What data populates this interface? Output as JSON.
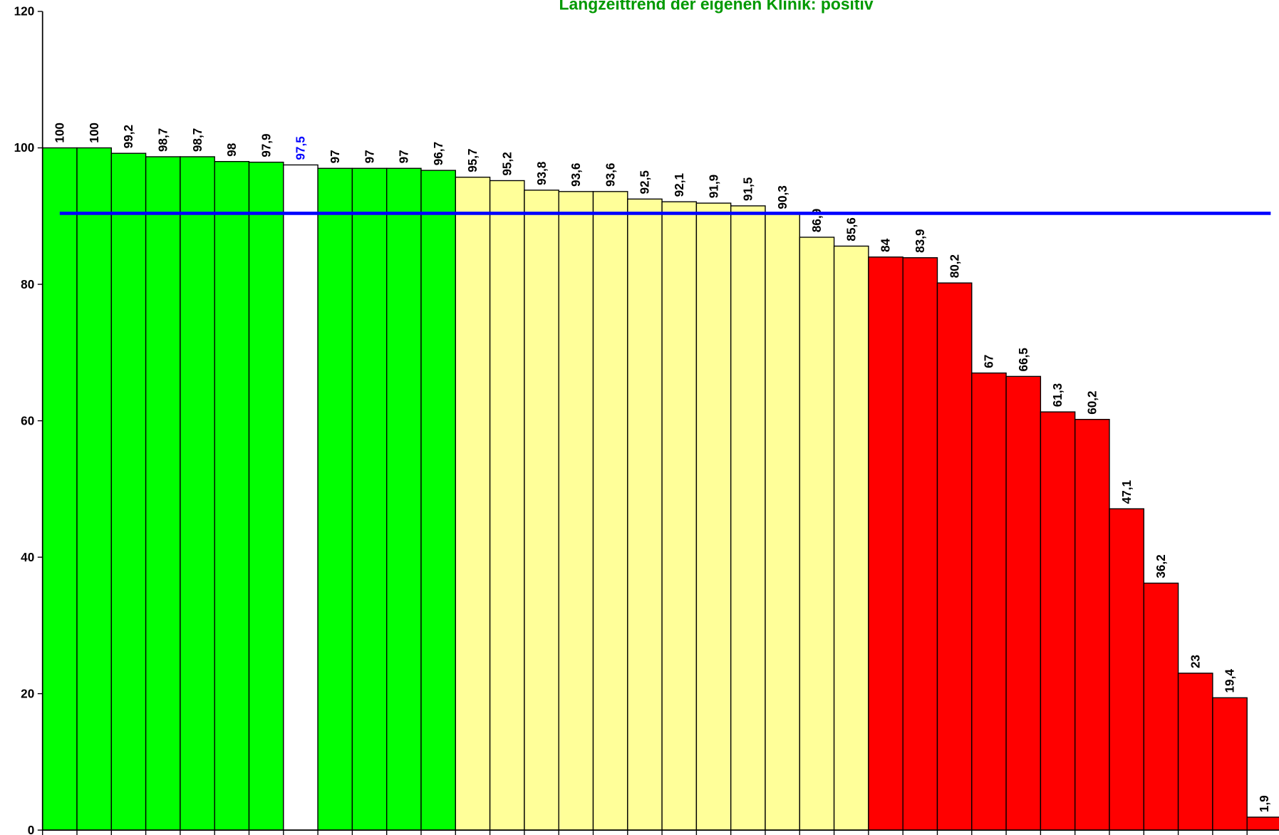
{
  "chart_data": {
    "type": "bar",
    "title": "Langzeittrend der eigenen Klinik: positiv",
    "values": [
      100,
      100,
      99.2,
      98.7,
      98.7,
      98,
      97.9,
      97.5,
      97,
      97,
      97,
      96.7,
      95.7,
      95.2,
      93.8,
      93.6,
      93.6,
      92.5,
      92.1,
      91.9,
      91.5,
      90.3,
      86.9,
      85.6,
      84,
      83.9,
      80.2,
      67,
      66.5,
      61.3,
      60.2,
      47.1,
      36.2,
      23,
      19.4,
      1.9
    ],
    "value_labels": [
      "100",
      "100",
      "99,2",
      "98,7",
      "98,7",
      "98",
      "97,9",
      "97,5",
      "97",
      "97",
      "97",
      "96,7",
      "95,7",
      "95,2",
      "93,8",
      "93,6",
      "93,6",
      "92,5",
      "92,1",
      "91,9",
      "91,5",
      "90,3",
      "86,9",
      "85,6",
      "84",
      "83,9",
      "80,2",
      "67",
      "66,5",
      "61,3",
      "60,2",
      "47,1",
      "36,2",
      "23",
      "19,4",
      "1,9"
    ],
    "colors": [
      "#00ff00",
      "#00ff00",
      "#00ff00",
      "#00ff00",
      "#00ff00",
      "#00ff00",
      "#00ff00",
      "#ffffff",
      "#00ff00",
      "#00ff00",
      "#00ff00",
      "#00ff00",
      "#ffff99",
      "#ffff99",
      "#ffff99",
      "#ffff99",
      "#ffff99",
      "#ffff99",
      "#ffff99",
      "#ffff99",
      "#ffff99",
      "#ffff99",
      "#ffff99",
      "#ffff99",
      "#ff0000",
      "#ff0000",
      "#ff0000",
      "#ff0000",
      "#ff0000",
      "#ff0000",
      "#ff0000",
      "#ff0000",
      "#ff0000",
      "#ff0000",
      "#ff0000",
      "#ff0000"
    ],
    "label_colors": [
      "#000000",
      "#000000",
      "#000000",
      "#000000",
      "#000000",
      "#000000",
      "#000000",
      "#0000ff",
      "#000000",
      "#000000",
      "#000000",
      "#000000",
      "#000000",
      "#000000",
      "#000000",
      "#000000",
      "#000000",
      "#000000",
      "#000000",
      "#000000",
      "#000000",
      "#000000",
      "#000000",
      "#000000",
      "#000000",
      "#000000",
      "#000000",
      "#000000",
      "#000000",
      "#000000",
      "#000000",
      "#000000",
      "#000000",
      "#000000",
      "#000000",
      "#000000"
    ],
    "reference_line": 90.4,
    "reference_color": "#0000ff",
    "title_color": "#009900",
    "ylim": [
      0,
      120
    ],
    "yticks": [
      0,
      20,
      40,
      60,
      80,
      100,
      120
    ]
  }
}
